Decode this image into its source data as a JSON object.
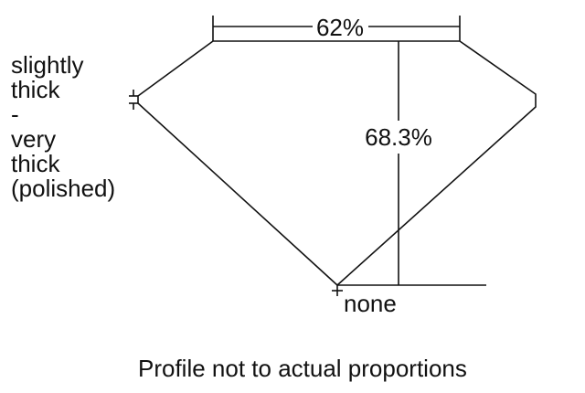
{
  "girdle_label": [
    "slightly",
    "thick",
    "-",
    "very",
    "thick",
    "(polished)"
  ],
  "table_label": "62%",
  "depth_label": "68.3%",
  "culet_label": "none",
  "caption": "Profile not to actual proportions",
  "line_color": "#111111"
}
